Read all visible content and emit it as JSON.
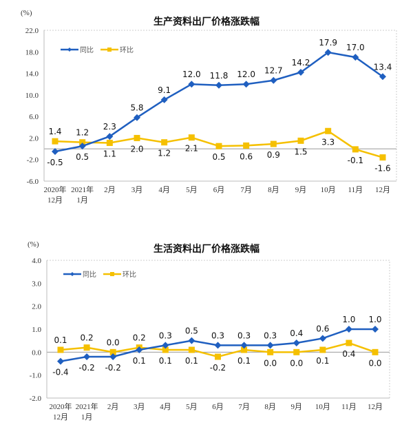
{
  "colors": {
    "yoy": "#1F5FC0",
    "mom": "#F5C000"
  },
  "legend": {
    "yoy": "同比",
    "mom": "环比"
  },
  "unit": "(%)",
  "chart_data": [
    {
      "type": "line",
      "title": "生产资料出厂价格涨跌幅",
      "ylabel": "(%)",
      "categories": [
        "2020年\n12月",
        "2021年\n1月",
        "2月",
        "3月",
        "4月",
        "5月",
        "6月",
        "7月",
        "8月",
        "9月",
        "10月",
        "11月",
        "12月"
      ],
      "ylim": [
        -6,
        22
      ],
      "yticks": [
        "22.0",
        "18.0",
        "14.0",
        "10.0",
        "6.0",
        "2.0",
        "-2.0",
        "-6.0"
      ],
      "legend_position": "top-left",
      "series": [
        {
          "name": "同比",
          "key": "yoy",
          "marker": "diamond",
          "values": [
            -0.5,
            0.5,
            2.3,
            5.8,
            9.1,
            12.0,
            11.8,
            12.0,
            12.7,
            14.2,
            17.9,
            17.0,
            13.4
          ]
        },
        {
          "name": "环比",
          "key": "mom",
          "marker": "square",
          "values": [
            1.4,
            1.2,
            1.1,
            2.0,
            1.2,
            2.1,
            0.5,
            0.6,
            0.9,
            1.5,
            3.3,
            -0.1,
            -1.6
          ]
        }
      ]
    },
    {
      "type": "line",
      "title": "生活资料出厂价格涨跌幅",
      "ylabel": "(%)",
      "categories": [
        "2020年\n12月",
        "2021年\n1月",
        "2月",
        "3月",
        "4月",
        "5月",
        "6月",
        "7月",
        "8月",
        "9月",
        "10月",
        "11月",
        "12月"
      ],
      "ylim": [
        -2,
        4
      ],
      "yticks": [
        "4.0",
        "3.0",
        "2.0",
        "1.0",
        "0.0",
        "-1.0",
        "-2.0"
      ],
      "legend_position": "top-left",
      "series": [
        {
          "name": "同比",
          "key": "yoy",
          "marker": "diamond",
          "values": [
            -0.4,
            -0.2,
            -0.2,
            0.1,
            0.3,
            0.5,
            0.3,
            0.3,
            0.3,
            0.4,
            0.6,
            1.0,
            1.0
          ]
        },
        {
          "name": "环比",
          "key": "mom",
          "marker": "square",
          "values": [
            0.1,
            0.2,
            0.0,
            0.2,
            0.1,
            0.1,
            -0.2,
            0.1,
            0.0,
            0.0,
            0.1,
            0.4,
            0.0
          ]
        }
      ]
    }
  ]
}
